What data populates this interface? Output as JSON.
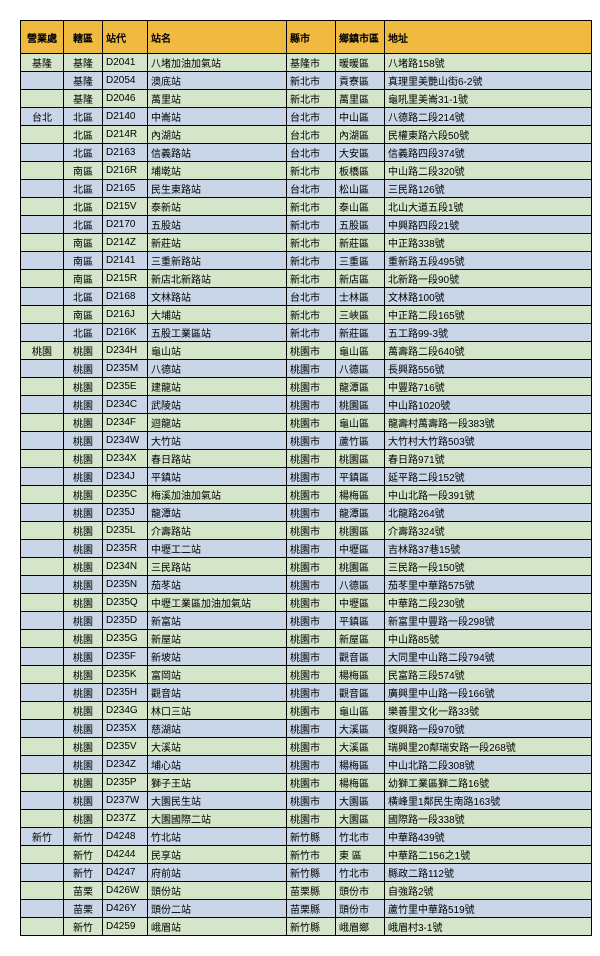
{
  "colors": {
    "header": "#f0b93f",
    "green": "#d4e5ca",
    "blue": "#c9d6e8",
    "border": "#000000"
  },
  "columns": [
    "營業處",
    "轄區",
    "站代",
    "站名",
    "縣市",
    "鄉鎮市區",
    "地址"
  ],
  "rows": [
    {
      "c": "green",
      "d": [
        "基隆",
        "基隆",
        "D2041",
        "八堵加油加氣站",
        "基隆市",
        "暖暖區",
        "八堵路158號"
      ]
    },
    {
      "c": "blue",
      "d": [
        "",
        "基隆",
        "D2054",
        "澳底站",
        "新北市",
        "貢寮區",
        "真理里美艷山街6-2號"
      ]
    },
    {
      "c": "green",
      "d": [
        "",
        "基隆",
        "D2046",
        "萬里站",
        "新北市",
        "萬里區",
        "龜吼里美崙31-1號"
      ]
    },
    {
      "c": "blue",
      "d": [
        "台北",
        "北區",
        "D2140",
        "中崙站",
        "台北市",
        "中山區",
        "八德路二段214號"
      ]
    },
    {
      "c": "green",
      "d": [
        "",
        "北區",
        "D214R",
        "內湖站",
        "台北市",
        "內湖區",
        "民權東路六段50號"
      ]
    },
    {
      "c": "blue",
      "d": [
        "",
        "北區",
        "D2163",
        "信義路站",
        "台北市",
        "大安區",
        "信義路四段374號"
      ]
    },
    {
      "c": "green",
      "d": [
        "",
        "南區",
        "D216R",
        "埔墘站",
        "新北市",
        "板橋區",
        "中山路二段320號"
      ]
    },
    {
      "c": "blue",
      "d": [
        "",
        "北區",
        "D2165",
        "民生東路站",
        "台北市",
        "松山區",
        "三民路126號"
      ]
    },
    {
      "c": "green",
      "d": [
        "",
        "北區",
        "D215V",
        "泰新站",
        "新北市",
        "泰山區",
        "北山大道五段1號"
      ]
    },
    {
      "c": "blue",
      "d": [
        "",
        "北區",
        "D2170",
        "五股站",
        "新北市",
        "五股區",
        "中興路四段21號"
      ]
    },
    {
      "c": "green",
      "d": [
        "",
        "南區",
        "D214Z",
        "新莊站",
        "新北市",
        "新莊區",
        "中正路338號"
      ]
    },
    {
      "c": "blue",
      "d": [
        "",
        "南區",
        "D2141",
        "三重新路站",
        "新北市",
        "三重區",
        "重新路五段495號"
      ]
    },
    {
      "c": "green",
      "d": [
        "",
        "南區",
        "D215R",
        "新店北新路站",
        "新北市",
        "新店區",
        "北新路一段90號"
      ]
    },
    {
      "c": "blue",
      "d": [
        "",
        "北區",
        "D2168",
        "文林路站",
        "台北市",
        "士林區",
        "文林路100號"
      ]
    },
    {
      "c": "green",
      "d": [
        "",
        "南區",
        "D216J",
        "大埔站",
        "新北市",
        "三峽區",
        "中正路二段165號"
      ]
    },
    {
      "c": "blue",
      "d": [
        "",
        "北區",
        "D216K",
        "五股工業區站",
        "新北市",
        "新莊區",
        "五工路99-3號"
      ]
    },
    {
      "c": "green",
      "d": [
        "桃園",
        "桃園",
        "D234H",
        "龜山站",
        "桃園市",
        "龜山區",
        "萬壽路二段640號"
      ]
    },
    {
      "c": "blue",
      "d": [
        "",
        "桃園",
        "D235M",
        "八德站",
        "桃園市",
        "八德區",
        "長興路556號"
      ]
    },
    {
      "c": "green",
      "d": [
        "",
        "桃園",
        "D235E",
        "建龍站",
        "桃園市",
        "龍潭區",
        "中豐路716號"
      ]
    },
    {
      "c": "blue",
      "d": [
        "",
        "桃園",
        "D234C",
        "武陵站",
        "桃園市",
        "桃園區",
        "中山路1020號"
      ]
    },
    {
      "c": "green",
      "d": [
        "",
        "桃園",
        "D234F",
        "迴龍站",
        "桃園市",
        "龜山區",
        "龍壽村萬壽路一段383號"
      ]
    },
    {
      "c": "blue",
      "d": [
        "",
        "桃園",
        "D234W",
        "大竹站",
        "桃園市",
        "蘆竹區",
        "大竹村大竹路503號"
      ]
    },
    {
      "c": "green",
      "d": [
        "",
        "桃園",
        "D234X",
        "春日路站",
        "桃園市",
        "桃園區",
        "春日路971號"
      ]
    },
    {
      "c": "blue",
      "d": [
        "",
        "桃園",
        "D234J",
        "平鎮站",
        "桃園市",
        "平鎮區",
        "延平路二段152號"
      ]
    },
    {
      "c": "green",
      "d": [
        "",
        "桃園",
        "D235C",
        "梅溪加油加氣站",
        "桃園市",
        "楊梅區",
        "中山北路一段391號"
      ]
    },
    {
      "c": "blue",
      "d": [
        "",
        "桃園",
        "D235J",
        "龍潭站",
        "桃園市",
        "龍潭區",
        "北龍路264號"
      ]
    },
    {
      "c": "green",
      "d": [
        "",
        "桃園",
        "D235L",
        "介壽路站",
        "桃園市",
        "桃園區",
        "介壽路324號"
      ]
    },
    {
      "c": "blue",
      "d": [
        "",
        "桃園",
        "D235R",
        "中壢工二站",
        "桃園市",
        "中壢區",
        "吉林路37巷15號"
      ]
    },
    {
      "c": "green",
      "d": [
        "",
        "桃園",
        "D234N",
        "三民路站",
        "桃園市",
        "桃園區",
        "三民路一段150號"
      ]
    },
    {
      "c": "blue",
      "d": [
        "",
        "桃園",
        "D235N",
        "茄苳站",
        "桃園市",
        "八德區",
        "茄苳里中華路575號"
      ]
    },
    {
      "c": "green",
      "d": [
        "",
        "桃園",
        "D235Q",
        "中壢工業區加油加氣站",
        "桃園市",
        "中壢區",
        "中華路二段230號"
      ]
    },
    {
      "c": "blue",
      "d": [
        "",
        "桃園",
        "D235D",
        "新富站",
        "桃園市",
        "平鎮區",
        "新富里中豐路一段298號"
      ]
    },
    {
      "c": "green",
      "d": [
        "",
        "桃園",
        "D235G",
        "新屋站",
        "桃園市",
        "新屋區",
        "中山路85號"
      ]
    },
    {
      "c": "blue",
      "d": [
        "",
        "桃園",
        "D235F",
        "新坡站",
        "桃園市",
        "觀音區",
        "大同里中山路二段794號"
      ]
    },
    {
      "c": "green",
      "d": [
        "",
        "桃園",
        "D235K",
        "富岡站",
        "桃園市",
        "楊梅區",
        "民富路三段574號"
      ]
    },
    {
      "c": "blue",
      "d": [
        "",
        "桃園",
        "D235H",
        "觀音站",
        "桃園市",
        "觀音區",
        "廣興里中山路一段166號"
      ]
    },
    {
      "c": "green",
      "d": [
        "",
        "桃園",
        "D234G",
        "林口三站",
        "桃園市",
        "龜山區",
        "樂善里文化一路33號"
      ]
    },
    {
      "c": "blue",
      "d": [
        "",
        "桃園",
        "D235X",
        "慈湖站",
        "桃園市",
        "大溪區",
        "復興路一段970號"
      ]
    },
    {
      "c": "green",
      "d": [
        "",
        "桃園",
        "D235V",
        "大溪站",
        "桃園市",
        "大溪區",
        "瑞興里20鄰瑞安路一段268號"
      ]
    },
    {
      "c": "blue",
      "d": [
        "",
        "桃園",
        "D234Z",
        "埔心站",
        "桃園市",
        "楊梅區",
        "中山北路二段308號"
      ]
    },
    {
      "c": "green",
      "d": [
        "",
        "桃園",
        "D235P",
        "獅子王站",
        "桃園市",
        "楊梅區",
        "幼獅工業區獅二路16號"
      ]
    },
    {
      "c": "blue",
      "d": [
        "",
        "桃園",
        "D237W",
        "大園民生站",
        "桃園市",
        "大園區",
        "橫峰里1鄰民生南路163號"
      ]
    },
    {
      "c": "green",
      "d": [
        "",
        "桃園",
        "D237Z",
        "大園國際二站",
        "桃園市",
        "大園區",
        "國際路一段338號"
      ]
    },
    {
      "c": "blue",
      "d": [
        "新竹",
        "新竹",
        "D4248",
        "竹北站",
        "新竹縣",
        "竹北市",
        "中華路439號"
      ]
    },
    {
      "c": "green",
      "d": [
        "",
        "新竹",
        "D4244",
        "民享站",
        "新竹市",
        "東 區",
        "中華路二156之1號"
      ]
    },
    {
      "c": "blue",
      "d": [
        "",
        "新竹",
        "D4247",
        "府前站",
        "新竹縣",
        "竹北市",
        "縣政二路112號"
      ]
    },
    {
      "c": "green",
      "d": [
        "",
        "苗栗",
        "D426W",
        "頭份站",
        "苗栗縣",
        "頭份市",
        "自強路2號"
      ]
    },
    {
      "c": "blue",
      "d": [
        "",
        "苗栗",
        "D426Y",
        "頭份二站",
        "苗栗縣",
        "頭份市",
        "蘆竹里中華路519號"
      ]
    },
    {
      "c": "green",
      "d": [
        "",
        "新竹",
        "D4259",
        "峨眉站",
        "新竹縣",
        "峨眉鄉",
        "峨眉村3-1號"
      ]
    }
  ]
}
